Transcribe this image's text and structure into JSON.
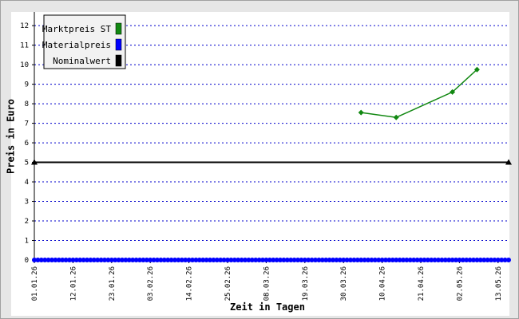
{
  "chart_data": {
    "type": "line",
    "xlabel": "Zeit in Tagen",
    "ylabel": "Preis in Euro",
    "xlim": [
      "01.01.26",
      "16.05.26"
    ],
    "xticks": [
      "01.01.26",
      "12.01.26",
      "23.01.26",
      "03.02.26",
      "14.02.26",
      "25.02.26",
      "08.03.26",
      "19.03.26",
      "30.03.26",
      "10.04.26",
      "21.04.26",
      "02.05.26",
      "13.05.26"
    ],
    "ylim": [
      0,
      12.7
    ],
    "yticks": [
      0,
      1,
      2,
      3,
      4,
      5,
      6,
      7,
      8,
      9,
      10,
      11,
      12
    ],
    "grid": true,
    "legend": "top-left",
    "series": [
      {
        "name": "Marktpreis ST",
        "color": "#118811",
        "marker": "diamond",
        "x": [
          "04.04.26",
          "14.04.26",
          "30.04.26",
          "07.05.26"
        ],
        "values": [
          7.55,
          7.3,
          8.6,
          9.75
        ]
      },
      {
        "name": "Materialpreis",
        "color": "#0000ff",
        "marker": "circle",
        "x": [
          "01.01.26",
          "02.01.26",
          "03.01.26",
          "04.01.26",
          "05.01.26",
          "06.01.26",
          "07.01.26",
          "08.01.26",
          "09.01.26",
          "10.01.26",
          "11.01.26",
          "12.01.26",
          "13.01.26",
          "14.01.26",
          "15.01.26",
          "16.01.26",
          "17.01.26",
          "18.01.26",
          "19.01.26",
          "20.01.26",
          "21.01.26",
          "22.01.26",
          "23.01.26",
          "24.01.26",
          "25.01.26",
          "26.01.26",
          "27.01.26",
          "28.01.26",
          "29.01.26",
          "30.01.26",
          "31.01.26",
          "01.02.26",
          "02.02.26",
          "03.02.26",
          "04.02.26",
          "05.02.26",
          "06.02.26",
          "07.02.26",
          "08.02.26",
          "09.02.26",
          "10.02.26",
          "11.02.26",
          "12.02.26",
          "13.02.26",
          "14.02.26",
          "15.02.26",
          "16.02.26",
          "17.02.26",
          "18.02.26",
          "19.02.26",
          "20.02.26",
          "21.02.26",
          "22.02.26",
          "23.02.26",
          "24.02.26",
          "25.02.26",
          "26.02.26",
          "27.02.26",
          "28.02.26",
          "01.03.26",
          "02.03.26",
          "03.03.26",
          "04.03.26",
          "05.03.26",
          "06.03.26",
          "07.03.26",
          "08.03.26",
          "09.03.26",
          "10.03.26",
          "11.03.26",
          "12.03.26",
          "13.03.26",
          "14.03.26",
          "15.03.26",
          "16.03.26",
          "17.03.26",
          "18.03.26",
          "19.03.26",
          "20.03.26",
          "21.03.26",
          "22.03.26",
          "23.03.26",
          "24.03.26",
          "25.03.26",
          "26.03.26",
          "27.03.26",
          "28.03.26",
          "29.03.26",
          "30.03.26",
          "31.03.26",
          "01.04.26",
          "02.04.26",
          "03.04.26",
          "04.04.26",
          "05.04.26",
          "06.04.26",
          "07.04.26",
          "08.04.26",
          "09.04.26",
          "10.04.26",
          "11.04.26",
          "12.04.26",
          "13.04.26",
          "14.04.26",
          "15.04.26",
          "16.04.26",
          "17.04.26",
          "18.04.26",
          "19.04.26",
          "20.04.26",
          "21.04.26",
          "22.04.26",
          "23.04.26",
          "24.04.26",
          "25.04.26",
          "26.04.26",
          "27.04.26",
          "28.04.26",
          "29.04.26",
          "30.04.26",
          "01.05.26",
          "02.05.26",
          "03.05.26",
          "04.05.26",
          "05.05.26",
          "06.05.26",
          "07.05.26",
          "08.05.26",
          "09.05.26",
          "10.05.26",
          "11.05.26",
          "12.05.26",
          "13.05.26",
          "14.05.26",
          "15.05.26",
          "16.05.26"
        ],
        "values": [
          0,
          0,
          0,
          0,
          0,
          0,
          0,
          0,
          0,
          0,
          0,
          0,
          0,
          0,
          0,
          0,
          0,
          0,
          0,
          0,
          0,
          0,
          0,
          0,
          0,
          0,
          0,
          0,
          0,
          0,
          0,
          0,
          0,
          0,
          0,
          0,
          0,
          0,
          0,
          0,
          0,
          0,
          0,
          0,
          0,
          0,
          0,
          0,
          0,
          0,
          0,
          0,
          0,
          0,
          0,
          0,
          0,
          0,
          0,
          0,
          0,
          0,
          0,
          0,
          0,
          0,
          0,
          0,
          0,
          0,
          0,
          0,
          0,
          0,
          0,
          0,
          0,
          0,
          0,
          0,
          0,
          0,
          0,
          0,
          0,
          0,
          0,
          0,
          0,
          0,
          0,
          0,
          0,
          0,
          0,
          0,
          0,
          0,
          0,
          0,
          0,
          0,
          0,
          0,
          0,
          0,
          0,
          0,
          0,
          0,
          0,
          0,
          0,
          0,
          0,
          0,
          0,
          0,
          0,
          0,
          0,
          0,
          0,
          0,
          0,
          0,
          0,
          0,
          0,
          0,
          0,
          0,
          0,
          0,
          0,
          0
        ]
      },
      {
        "name": "Nominalwert",
        "color": "#000000",
        "marker": "triangle",
        "x": [
          "01.01.26",
          "16.05.26"
        ],
        "values": [
          5,
          5
        ]
      }
    ]
  }
}
